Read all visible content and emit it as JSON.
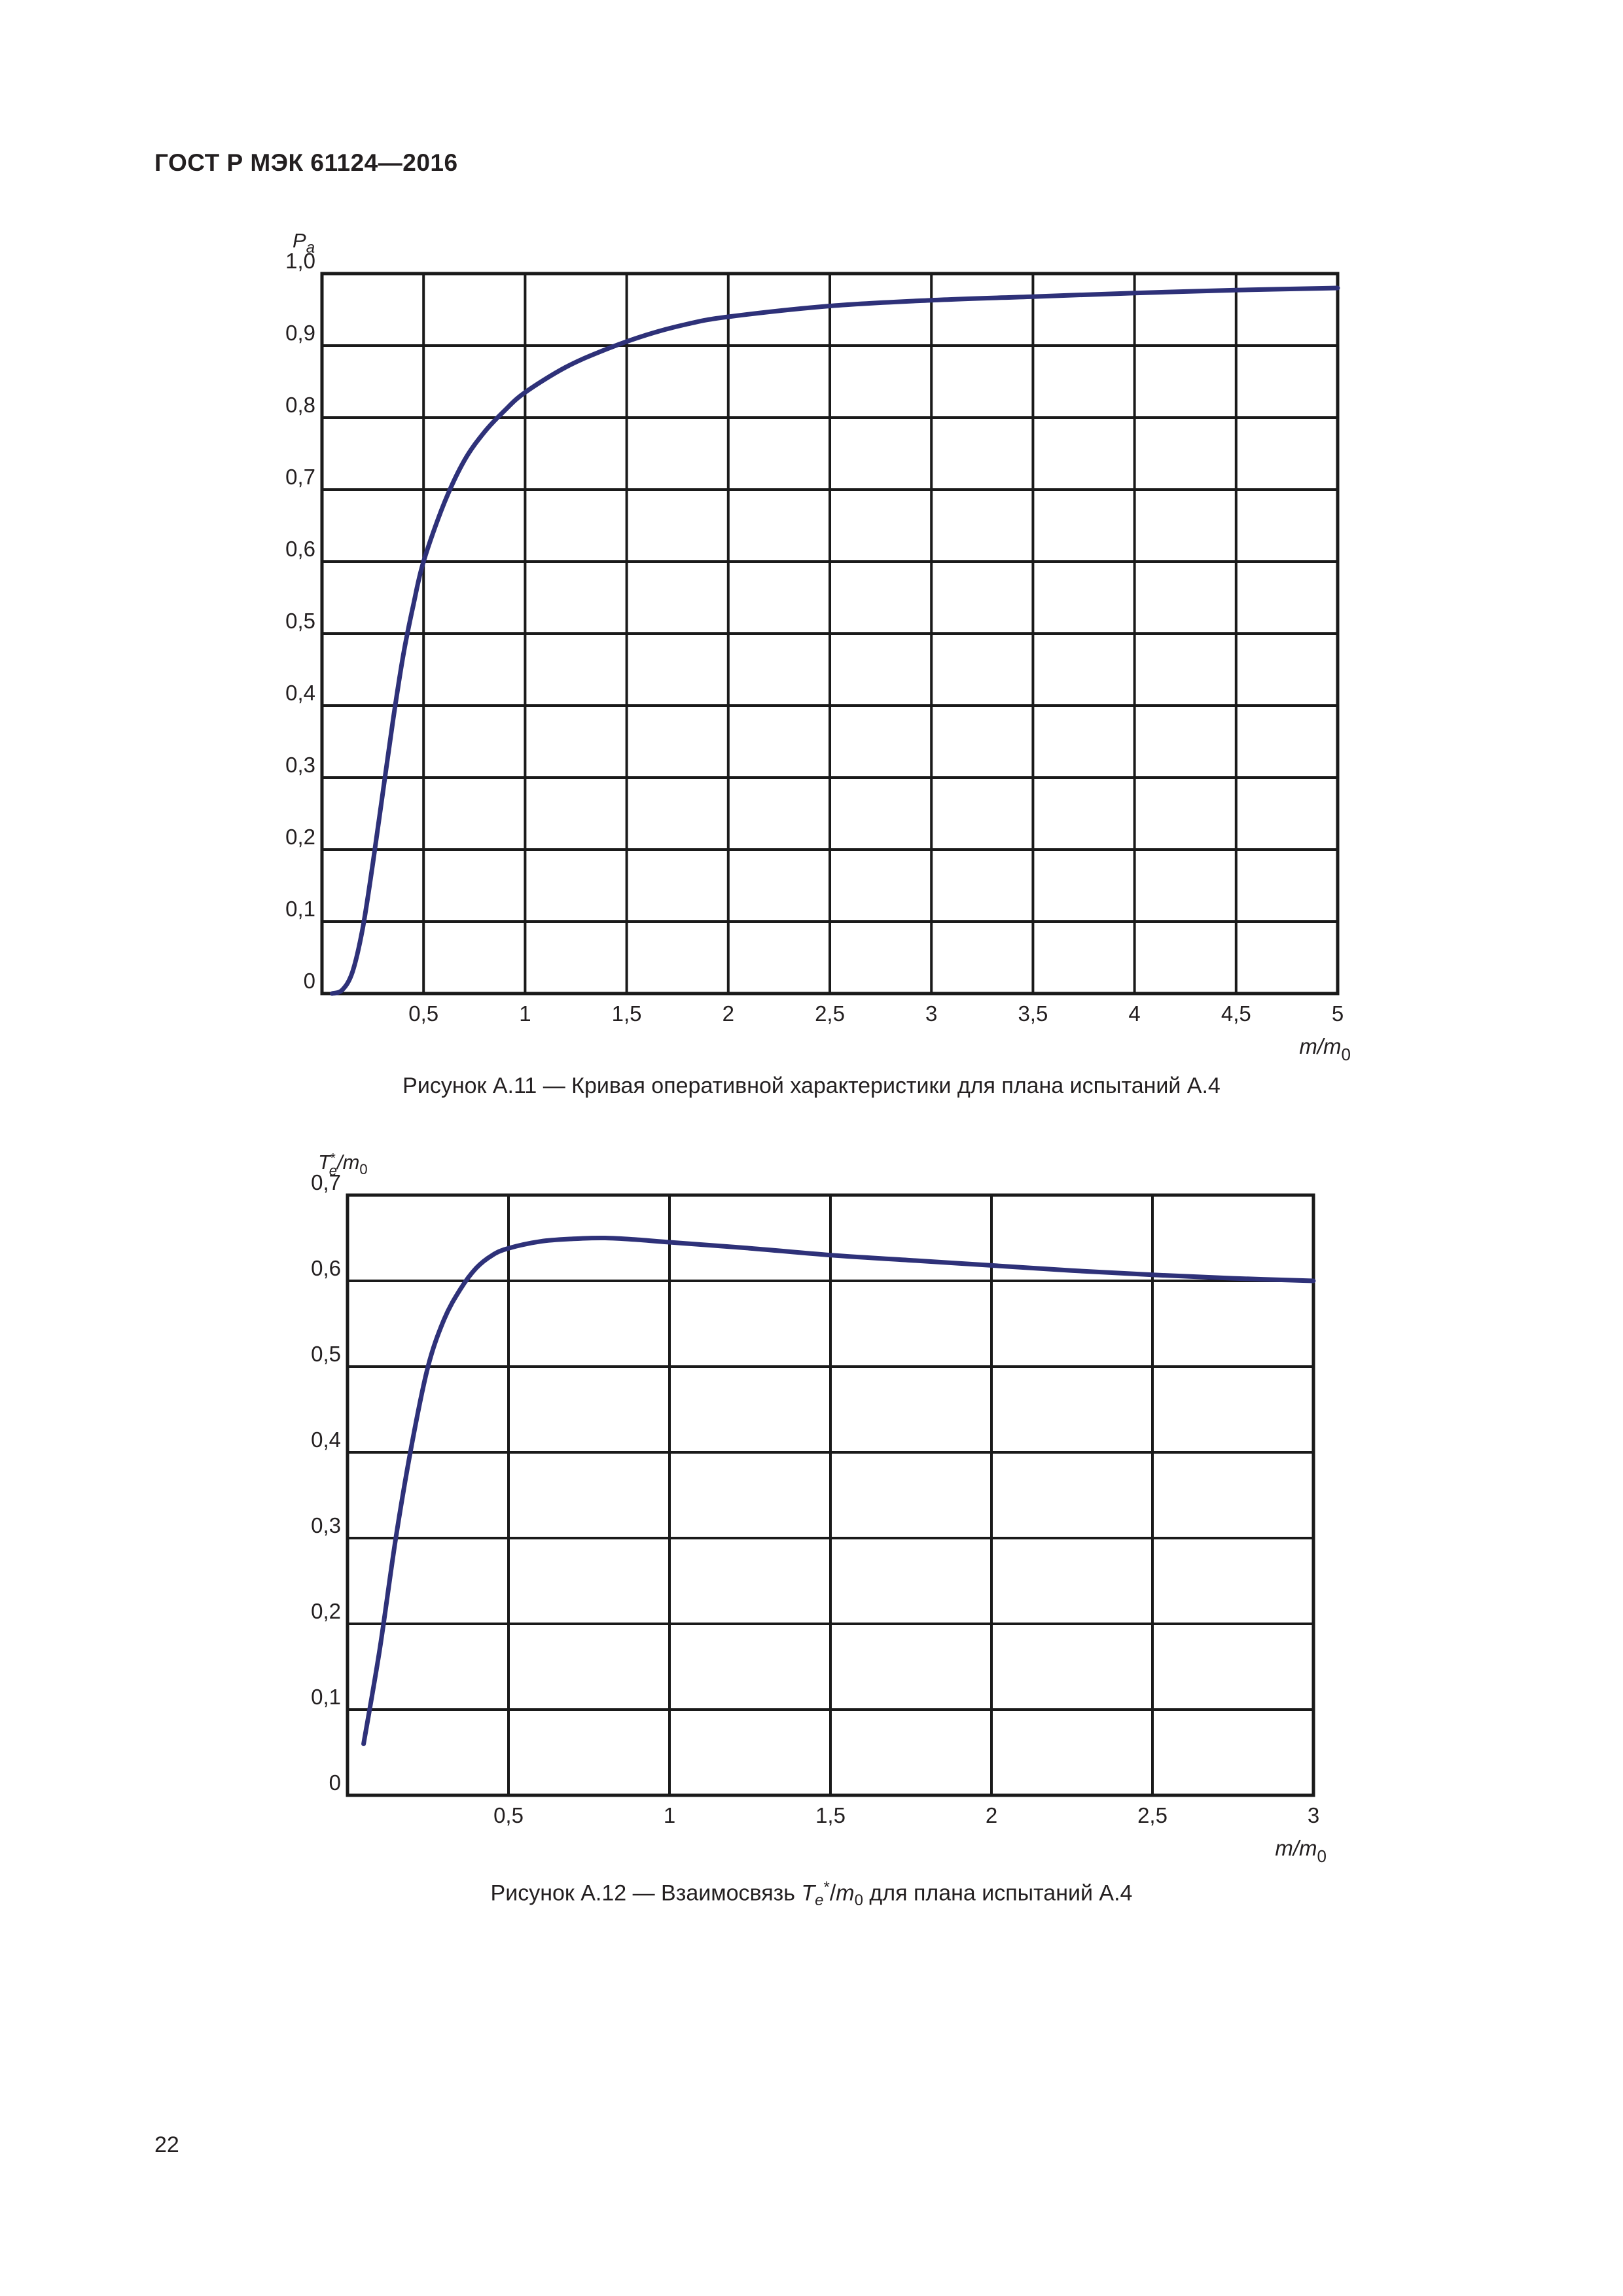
{
  "document": {
    "header": "ГОСТ Р МЭК 61124—2016",
    "page_number": "22"
  },
  "figures": [
    {
      "caption": "Рисунок А.11 — Кривая оперативной характеристики для плана испытаний А.4"
    },
    {
      "caption_prefix": "Рисунок А.12 — Взаимосвязь ",
      "caption_var": "T",
      "caption_var_sub": "e",
      "caption_var_sup": "*",
      "caption_slash": "/",
      "caption_m": "m",
      "caption_m_sub": "0",
      "caption_suffix": " для плана испытаний А.4"
    }
  ],
  "chart_data": [
    {
      "type": "line",
      "ylabel": "P",
      "ylabel_sub": "a",
      "xlabel": "m/m",
      "xlabel_sub": "0",
      "xlim": [
        0,
        5
      ],
      "ylim": [
        0,
        1.0
      ],
      "grid": true,
      "line_color": "#2e3179",
      "x_ticks": [
        "0,5",
        "1",
        "1,5",
        "2",
        "2,5",
        "3",
        "3,5",
        "4",
        "4,5",
        "5"
      ],
      "x_tick_values": [
        0.5,
        1,
        1.5,
        2,
        2.5,
        3,
        3.5,
        4,
        4.5,
        5
      ],
      "y_ticks": [
        "0",
        "0,1",
        "0,2",
        "0,3",
        "0,4",
        "0,5",
        "0,6",
        "0,7",
        "0,8",
        "0,9",
        "1,0"
      ],
      "y_tick_values": [
        0,
        0.1,
        0.2,
        0.3,
        0.4,
        0.5,
        0.6,
        0.7,
        0.8,
        0.9,
        1.0
      ],
      "series": [
        {
          "x": [
            0.05,
            0.1,
            0.15,
            0.2,
            0.25,
            0.3,
            0.35,
            0.4,
            0.45,
            0.5,
            0.6,
            0.7,
            0.8,
            0.9,
            1.0,
            1.2,
            1.4,
            1.6,
            1.8,
            2.0,
            2.5,
            3.0,
            3.5,
            4.0,
            4.5,
            5.0
          ],
          "y": [
            0.0,
            0.005,
            0.03,
            0.09,
            0.18,
            0.28,
            0.38,
            0.47,
            0.54,
            0.6,
            0.68,
            0.74,
            0.78,
            0.81,
            0.835,
            0.87,
            0.895,
            0.915,
            0.93,
            0.94,
            0.955,
            0.963,
            0.968,
            0.973,
            0.977,
            0.98
          ]
        }
      ]
    },
    {
      "type": "line",
      "ylabel": "T",
      "ylabel_sub": "e",
      "ylabel_sup": "*",
      "ylabel_rest": "/m",
      "ylabel_rest_sub": "0",
      "xlabel": "m/m",
      "xlabel_sub": "0",
      "xlim": [
        0,
        3
      ],
      "ylim": [
        0,
        0.7
      ],
      "grid": true,
      "line_color": "#2e3179",
      "x_ticks": [
        "0,5",
        "1",
        "1,5",
        "2",
        "2,5",
        "3"
      ],
      "x_tick_values": [
        0.5,
        1,
        1.5,
        2,
        2.5,
        3
      ],
      "y_ticks": [
        "0",
        "0,1",
        "0,2",
        "0,3",
        "0,4",
        "0,5",
        "0,6",
        "0,7"
      ],
      "y_tick_values": [
        0,
        0.1,
        0.2,
        0.3,
        0.4,
        0.5,
        0.6,
        0.7
      ],
      "series": [
        {
          "x": [
            0.05,
            0.1,
            0.15,
            0.2,
            0.25,
            0.3,
            0.35,
            0.4,
            0.45,
            0.5,
            0.6,
            0.7,
            0.8,
            0.9,
            1.0,
            1.25,
            1.5,
            1.75,
            2.0,
            2.25,
            2.5,
            2.75,
            3.0
          ],
          "y": [
            0.06,
            0.17,
            0.3,
            0.41,
            0.5,
            0.555,
            0.59,
            0.615,
            0.63,
            0.638,
            0.646,
            0.649,
            0.65,
            0.648,
            0.645,
            0.638,
            0.63,
            0.624,
            0.618,
            0.612,
            0.607,
            0.603,
            0.6
          ]
        }
      ]
    }
  ]
}
